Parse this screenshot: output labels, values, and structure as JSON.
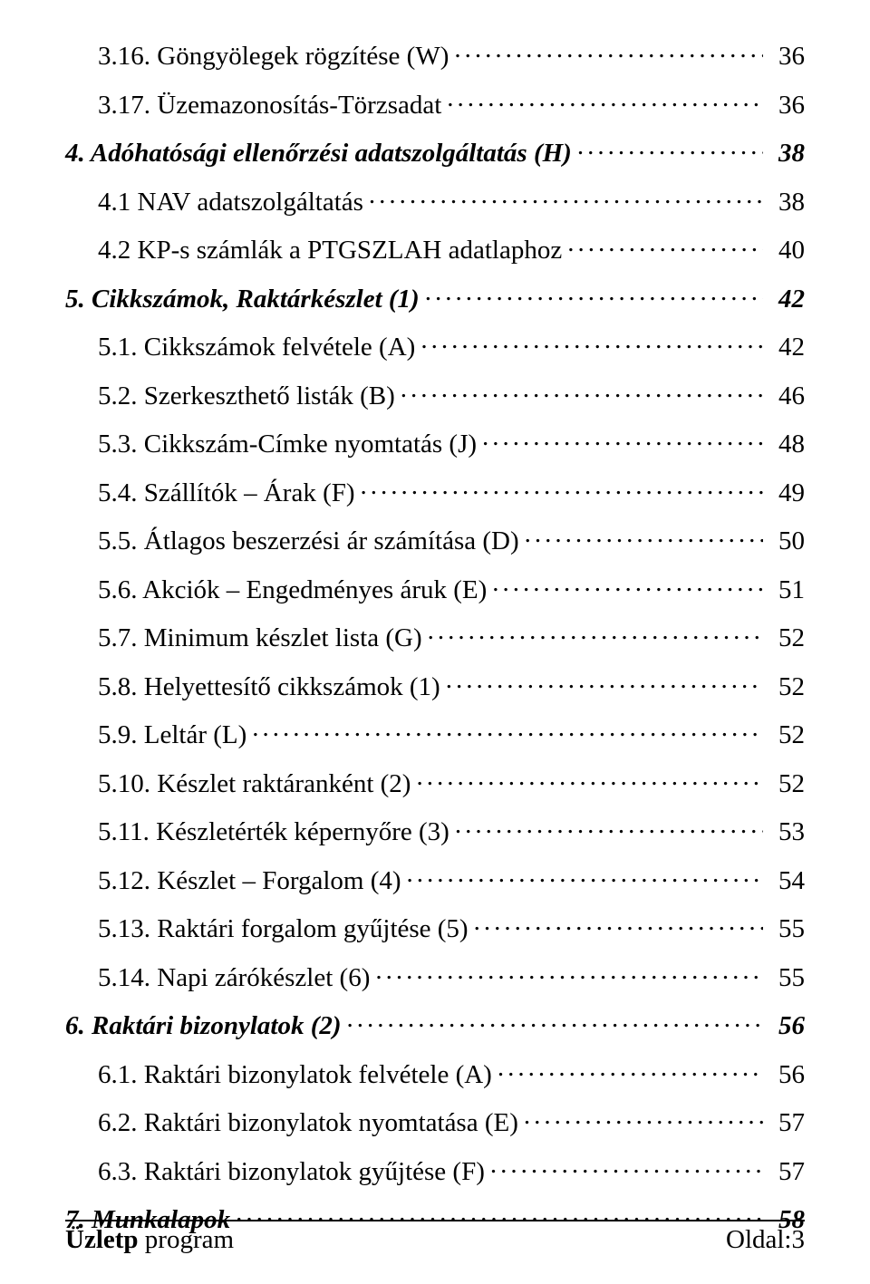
{
  "toc": [
    {
      "level": "sub",
      "title": "3.16. Göngyölegek rögzítése (W)",
      "page": "36"
    },
    {
      "level": "sub",
      "title": "3.17. Üzemazonosítás-Törzsadat",
      "page": "36"
    },
    {
      "level": "head",
      "title": "4. Adóhatósági ellenőrzési adatszolgáltatás (H)",
      "page": "38"
    },
    {
      "level": "sub",
      "title": "4.1 NAV adatszolgáltatás",
      "page": "38"
    },
    {
      "level": "sub",
      "title": "4.2 KP-s számlák a PTGSZLAH adatlaphoz",
      "page": "40"
    },
    {
      "level": "head",
      "title": "5. Cikkszámok, Raktárkészlet (1)",
      "page": "42"
    },
    {
      "level": "sub",
      "title": "5.1. Cikkszámok felvétele (A)",
      "page": "42"
    },
    {
      "level": "sub",
      "title": "5.2. Szerkeszthető listák (B)",
      "page": "46"
    },
    {
      "level": "sub",
      "title": "5.3. Cikkszám-Címke nyomtatás (J)",
      "page": "48"
    },
    {
      "level": "sub",
      "title": "5.4. Szállítók – Árak (F)",
      "page": "49"
    },
    {
      "level": "sub",
      "title": "5.5. Átlagos beszerzési ár számítása (D)",
      "page": "50"
    },
    {
      "level": "sub",
      "title": "5.6. Akciók – Engedményes áruk (E)",
      "page": "51"
    },
    {
      "level": "sub",
      "title": "5.7. Minimum készlet lista (G)",
      "page": "52"
    },
    {
      "level": "sub",
      "title": "5.8. Helyettesítő cikkszámok (1)",
      "page": "52"
    },
    {
      "level": "sub",
      "title": "5.9. Leltár (L)",
      "page": "52"
    },
    {
      "level": "sub",
      "title": "5.10. Készlet raktáranként (2)",
      "page": "52"
    },
    {
      "level": "sub",
      "title": "5.11. Készletérték képernyőre (3)",
      "page": "53"
    },
    {
      "level": "sub",
      "title": "5.12. Készlet – Forgalom (4)",
      "page": "54"
    },
    {
      "level": "sub",
      "title": "5.13. Raktári forgalom gyűjtése (5)",
      "page": "55"
    },
    {
      "level": "sub",
      "title": "5.14. Napi zárókészlet (6)",
      "page": "55"
    },
    {
      "level": "head",
      "title": "6. Raktári bizonylatok (2)",
      "page": "56"
    },
    {
      "level": "sub",
      "title": "6.1. Raktári bizonylatok felvétele (A)",
      "page": "56"
    },
    {
      "level": "sub",
      "title": "6.2. Raktári bizonylatok nyomtatása (E)",
      "page": "57"
    },
    {
      "level": "sub",
      "title": "6.3. Raktári bizonylatok gyűjtése (F)",
      "page": "57"
    },
    {
      "level": "head",
      "title": "7. Munkalapok",
      "page": "58"
    }
  ],
  "footer": {
    "left_bold": "Üzletp",
    "left_rest": " program",
    "right": "Oldal:3"
  }
}
